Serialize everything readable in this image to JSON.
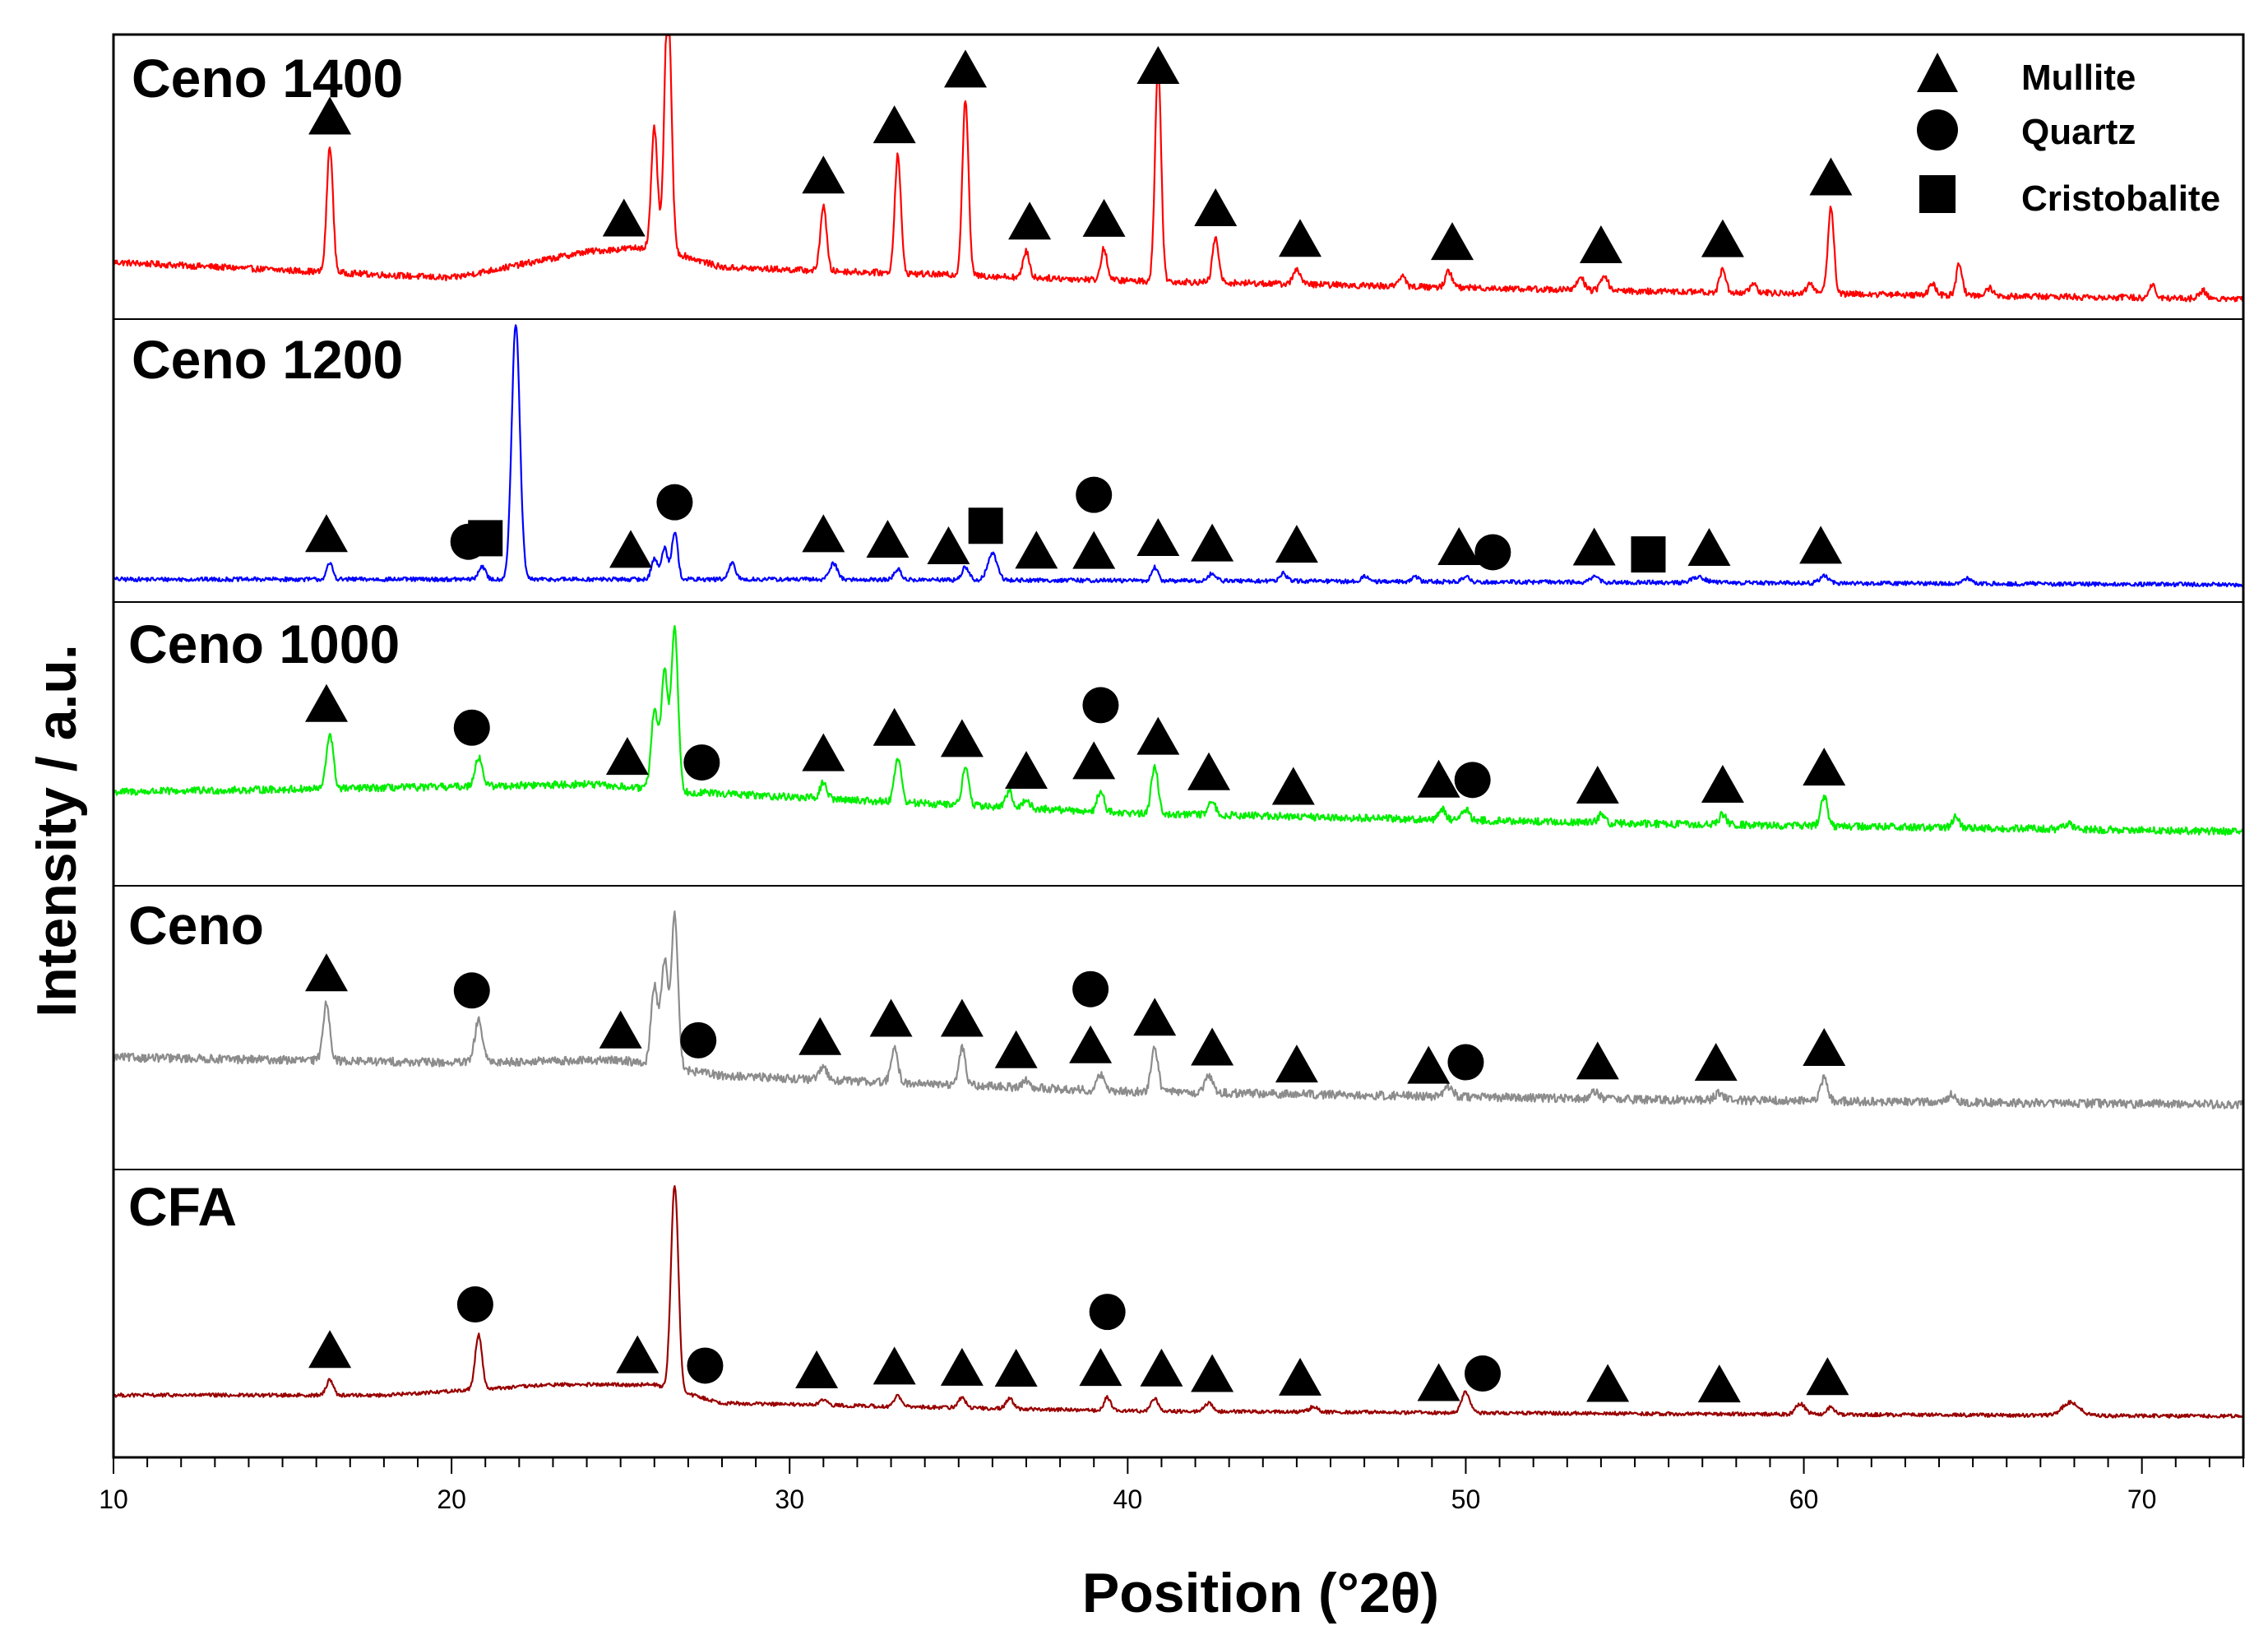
{
  "chart_data": {
    "type": "line",
    "title": "",
    "xlabel": "Position (°2θ)",
    "ylabel": "Intensity / a.u.",
    "xlim": [
      10,
      73
    ],
    "x_major_ticks": [
      10,
      20,
      30,
      40,
      50,
      60,
      70
    ],
    "x_tick_labels": [
      "10",
      "20",
      "30",
      "40",
      "50",
      "60",
      "70"
    ],
    "x_minor_step": 1,
    "grid": false,
    "legend_position": "top-right",
    "legend": [
      {
        "marker": "triangle",
        "label": "Mullite"
      },
      {
        "marker": "circle",
        "label": "Quartz"
      },
      {
        "marker": "square",
        "label": "Cristobalite"
      }
    ],
    "series": [
      {
        "name": "Ceno 1400",
        "color": "#ff0000",
        "baseline": [
          [
            10,
            0.16
          ],
          [
            20,
            0.1
          ],
          [
            24,
            0.2
          ],
          [
            26,
            0.22
          ],
          [
            28,
            0.14
          ],
          [
            40,
            0.09
          ],
          [
            55,
            0.05
          ],
          [
            73,
            0.02
          ]
        ],
        "noise": 0.012,
        "peaks": [
          [
            16.4,
            0.48,
            0.09
          ],
          [
            26.0,
            0.45,
            0.09
          ],
          [
            26.4,
            0.98,
            0.1
          ],
          [
            31.0,
            0.25,
            0.09
          ],
          [
            33.2,
            0.45,
            0.09
          ],
          [
            35.2,
            0.67,
            0.09
          ],
          [
            37.0,
            0.1,
            0.09
          ],
          [
            39.3,
            0.12,
            0.09
          ],
          [
            40.9,
            0.82,
            0.09
          ],
          [
            42.6,
            0.17,
            0.09
          ],
          [
            45.0,
            0.06,
            0.1
          ],
          [
            48.1,
            0.04,
            0.1
          ],
          [
            49.5,
            0.06,
            0.1
          ],
          [
            53.4,
            0.05,
            0.1
          ],
          [
            54.1,
            0.06,
            0.1
          ],
          [
            57.6,
            0.09,
            0.09
          ],
          [
            58.5,
            0.03,
            0.1
          ],
          [
            60.2,
            0.04,
            0.1
          ],
          [
            60.8,
            0.33,
            0.09
          ],
          [
            63.8,
            0.04,
            0.1
          ],
          [
            64.6,
            0.12,
            0.09
          ],
          [
            65.5,
            0.03,
            0.1
          ],
          [
            70.3,
            0.05,
            0.1
          ],
          [
            71.8,
            0.03,
            0.1
          ]
        ],
        "markers": [
          {
            "type": "triangle",
            "x": 16.4
          },
          {
            "type": "triangle",
            "x": 25.1
          },
          {
            "type": "triangle",
            "x": 31.0
          },
          {
            "type": "triangle",
            "x": 33.1
          },
          {
            "type": "triangle",
            "x": 35.2
          },
          {
            "type": "triangle",
            "x": 37.1
          },
          {
            "type": "triangle",
            "x": 39.3
          },
          {
            "type": "triangle",
            "x": 40.9
          },
          {
            "type": "triangle",
            "x": 42.6
          },
          {
            "type": "triangle",
            "x": 45.1
          },
          {
            "type": "triangle",
            "x": 49.6
          },
          {
            "type": "triangle",
            "x": 54.0
          },
          {
            "type": "triangle",
            "x": 57.6
          },
          {
            "type": "triangle",
            "x": 60.8
          }
        ]
      },
      {
        "name": "Ceno 1200",
        "color": "#0000ff",
        "baseline": [
          [
            10,
            0.03
          ],
          [
            30,
            0.03
          ],
          [
            73,
            0.01
          ]
        ],
        "noise": 0.008,
        "peaks": [
          [
            16.4,
            0.06,
            0.09
          ],
          [
            20.9,
            0.05,
            0.1
          ],
          [
            21.9,
            0.97,
            0.12
          ],
          [
            26.0,
            0.08,
            0.09
          ],
          [
            26.3,
            0.12,
            0.09
          ],
          [
            26.6,
            0.18,
            0.09
          ],
          [
            28.3,
            0.06,
            0.1
          ],
          [
            31.3,
            0.06,
            0.12
          ],
          [
            33.2,
            0.04,
            0.1
          ],
          [
            35.2,
            0.05,
            0.1
          ],
          [
            36.0,
            0.1,
            0.14
          ],
          [
            40.8,
            0.05,
            0.09
          ],
          [
            42.5,
            0.03,
            0.1
          ],
          [
            44.6,
            0.03,
            0.1
          ],
          [
            47.0,
            0.02,
            0.1
          ],
          [
            48.5,
            0.02,
            0.1
          ],
          [
            50.0,
            0.02,
            0.1
          ],
          [
            53.8,
            0.02,
            0.12
          ],
          [
            56.9,
            0.02,
            0.2
          ],
          [
            60.6,
            0.03,
            0.12
          ],
          [
            64.8,
            0.02,
            0.12
          ]
        ],
        "markers": [
          {
            "type": "triangle",
            "x": 16.3
          },
          {
            "type": "circle",
            "x": 20.5
          },
          {
            "type": "square",
            "x": 21.0
          },
          {
            "type": "triangle",
            "x": 25.3
          },
          {
            "type": "circle",
            "x": 26.6
          },
          {
            "type": "triangle",
            "x": 31.0
          },
          {
            "type": "triangle",
            "x": 32.9
          },
          {
            "type": "triangle",
            "x": 34.7
          },
          {
            "type": "square",
            "x": 35.8
          },
          {
            "type": "triangle",
            "x": 37.3
          },
          {
            "type": "triangle",
            "x": 39.0
          },
          {
            "type": "circle",
            "x": 39.0
          },
          {
            "type": "triangle",
            "x": 40.9
          },
          {
            "type": "triangle",
            "x": 42.5
          },
          {
            "type": "triangle",
            "x": 45.0
          },
          {
            "type": "triangle",
            "x": 49.8
          },
          {
            "type": "circle",
            "x": 50.8
          },
          {
            "type": "triangle",
            "x": 53.8
          },
          {
            "type": "square",
            "x": 55.4
          },
          {
            "type": "triangle",
            "x": 57.2
          },
          {
            "type": "triangle",
            "x": 60.5
          }
        ]
      },
      {
        "name": "Ceno 1000",
        "color": "#00ee00",
        "baseline": [
          [
            10,
            0.3
          ],
          [
            20,
            0.32
          ],
          [
            24,
            0.33
          ],
          [
            27,
            0.3
          ],
          [
            40,
            0.22
          ],
          [
            55,
            0.18
          ],
          [
            73,
            0.15
          ]
        ],
        "noise": 0.014,
        "peaks": [
          [
            16.4,
            0.21,
            0.1
          ],
          [
            20.8,
            0.11,
            0.11
          ],
          [
            26.0,
            0.3,
            0.1
          ],
          [
            26.3,
            0.45,
            0.1
          ],
          [
            26.6,
            0.62,
            0.1
          ],
          [
            31.0,
            0.06,
            0.1
          ],
          [
            33.2,
            0.17,
            0.1
          ],
          [
            35.2,
            0.14,
            0.1
          ],
          [
            36.5,
            0.06,
            0.1
          ],
          [
            37.0,
            0.03,
            0.1
          ],
          [
            39.2,
            0.08,
            0.1
          ],
          [
            40.8,
            0.18,
            0.1
          ],
          [
            42.5,
            0.05,
            0.1
          ],
          [
            49.3,
            0.04,
            0.1
          ],
          [
            50.0,
            0.04,
            0.1
          ],
          [
            54.0,
            0.03,
            0.1
          ],
          [
            57.6,
            0.04,
            0.1
          ],
          [
            60.6,
            0.11,
            0.1
          ],
          [
            64.5,
            0.04,
            0.1
          ],
          [
            67.8,
            0.02,
            0.14
          ]
        ],
        "markers": [
          {
            "type": "triangle",
            "x": 16.3
          },
          {
            "type": "circle",
            "x": 20.6
          },
          {
            "type": "triangle",
            "x": 25.2
          },
          {
            "type": "circle",
            "x": 27.4
          },
          {
            "type": "triangle",
            "x": 31.0
          },
          {
            "type": "triangle",
            "x": 33.1
          },
          {
            "type": "triangle",
            "x": 35.1
          },
          {
            "type": "triangle",
            "x": 37.0
          },
          {
            "type": "triangle",
            "x": 39.0
          },
          {
            "type": "circle",
            "x": 39.2
          },
          {
            "type": "triangle",
            "x": 40.9
          },
          {
            "type": "triangle",
            "x": 42.4
          },
          {
            "type": "triangle",
            "x": 44.9
          },
          {
            "type": "triangle",
            "x": 49.2
          },
          {
            "type": "circle",
            "x": 50.2
          },
          {
            "type": "triangle",
            "x": 53.9
          },
          {
            "type": "triangle",
            "x": 57.6
          },
          {
            "type": "triangle",
            "x": 60.6
          }
        ]
      },
      {
        "name": "Ceno",
        "color": "#8c8c8c",
        "baseline": [
          [
            10,
            0.37
          ],
          [
            20,
            0.35
          ],
          [
            25,
            0.36
          ],
          [
            28,
            0.3
          ],
          [
            40,
            0.24
          ],
          [
            55,
            0.21
          ],
          [
            73,
            0.19
          ]
        ],
        "noise": 0.016,
        "peaks": [
          [
            16.3,
            0.22,
            0.1
          ],
          [
            20.8,
            0.16,
            0.11
          ],
          [
            26.0,
            0.3,
            0.1
          ],
          [
            26.3,
            0.4,
            0.1
          ],
          [
            26.6,
            0.58,
            0.1
          ],
          [
            31.0,
            0.05,
            0.1
          ],
          [
            33.1,
            0.13,
            0.1
          ],
          [
            35.1,
            0.14,
            0.1
          ],
          [
            37.0,
            0.03,
            0.1
          ],
          [
            39.2,
            0.06,
            0.1
          ],
          [
            40.8,
            0.17,
            0.1
          ],
          [
            42.4,
            0.06,
            0.12
          ],
          [
            49.5,
            0.04,
            0.12
          ],
          [
            53.8,
            0.03,
            0.12
          ],
          [
            57.5,
            0.03,
            0.12
          ],
          [
            60.6,
            0.09,
            0.1
          ],
          [
            64.4,
            0.03,
            0.12
          ]
        ],
        "markers": [
          {
            "type": "triangle",
            "x": 16.3
          },
          {
            "type": "circle",
            "x": 20.6
          },
          {
            "type": "triangle",
            "x": 25.0
          },
          {
            "type": "circle",
            "x": 27.3
          },
          {
            "type": "triangle",
            "x": 30.9
          },
          {
            "type": "triangle",
            "x": 33.0
          },
          {
            "type": "triangle",
            "x": 35.1
          },
          {
            "type": "triangle",
            "x": 36.7
          },
          {
            "type": "triangle",
            "x": 38.9
          },
          {
            "type": "circle",
            "x": 38.9
          },
          {
            "type": "triangle",
            "x": 40.8
          },
          {
            "type": "triangle",
            "x": 42.5
          },
          {
            "type": "triangle",
            "x": 45.0
          },
          {
            "type": "triangle",
            "x": 48.9
          },
          {
            "type": "circle",
            "x": 50.0
          },
          {
            "type": "triangle",
            "x": 53.9
          },
          {
            "type": "triangle",
            "x": 57.4
          },
          {
            "type": "triangle",
            "x": 60.6
          }
        ]
      },
      {
        "name": "CFA",
        "color": "#990000",
        "baseline": [
          [
            10,
            0.18
          ],
          [
            18,
            0.18
          ],
          [
            23,
            0.22
          ],
          [
            26,
            0.22
          ],
          [
            28,
            0.15
          ],
          [
            40,
            0.12
          ],
          [
            55,
            0.11
          ],
          [
            73,
            0.1
          ]
        ],
        "noise": 0.007,
        "peaks": [
          [
            16.4,
            0.06,
            0.1
          ],
          [
            20.8,
            0.21,
            0.1
          ],
          [
            26.6,
            0.78,
            0.11
          ],
          [
            31.0,
            0.02,
            0.1
          ],
          [
            33.2,
            0.04,
            0.1
          ],
          [
            35.1,
            0.04,
            0.1
          ],
          [
            36.5,
            0.04,
            0.1
          ],
          [
            39.4,
            0.05,
            0.1
          ],
          [
            40.8,
            0.05,
            0.1
          ],
          [
            42.4,
            0.03,
            0.12
          ],
          [
            45.5,
            0.02,
            0.12
          ],
          [
            50.0,
            0.08,
            0.12
          ],
          [
            59.9,
            0.04,
            0.14
          ],
          [
            60.8,
            0.03,
            0.1
          ],
          [
            67.9,
            0.05,
            0.25
          ]
        ],
        "markers": [
          {
            "type": "triangle",
            "x": 16.4
          },
          {
            "type": "circle",
            "x": 20.7
          },
          {
            "type": "triangle",
            "x": 25.5
          },
          {
            "type": "circle",
            "x": 27.5
          },
          {
            "type": "triangle",
            "x": 30.8
          },
          {
            "type": "triangle",
            "x": 33.1
          },
          {
            "type": "triangle",
            "x": 35.1
          },
          {
            "type": "triangle",
            "x": 36.7
          },
          {
            "type": "triangle",
            "x": 39.2
          },
          {
            "type": "circle",
            "x": 39.4
          },
          {
            "type": "triangle",
            "x": 41.0
          },
          {
            "type": "triangle",
            "x": 42.5
          },
          {
            "type": "triangle",
            "x": 45.1
          },
          {
            "type": "triangle",
            "x": 49.2
          },
          {
            "type": "circle",
            "x": 50.5
          },
          {
            "type": "triangle",
            "x": 54.2
          },
          {
            "type": "triangle",
            "x": 57.5
          },
          {
            "type": "triangle",
            "x": 60.7
          }
        ]
      }
    ]
  }
}
